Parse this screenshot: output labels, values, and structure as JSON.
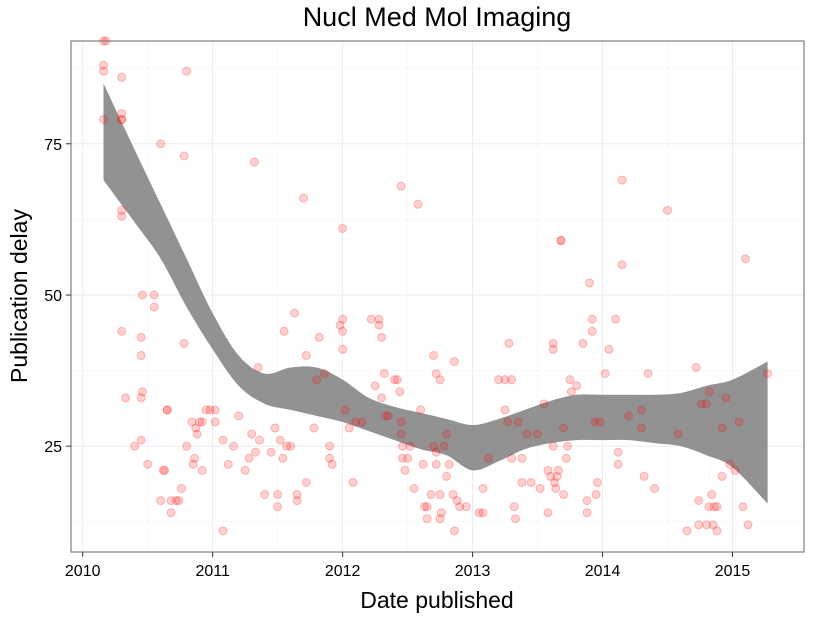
{
  "chart_data": {
    "type": "scatter",
    "title": "Nucl Med Mol Imaging",
    "xlabel": "Date published",
    "ylabel": "Publication delay",
    "x_ticks": [
      2010,
      2011,
      2012,
      2013,
      2014,
      2015
    ],
    "y_ticks": [
      25,
      50,
      75
    ],
    "xlim": [
      2009.91,
      2015.55
    ],
    "ylim": [
      7.5,
      92
    ],
    "grid": true,
    "colors": {
      "points": "#ff0000",
      "ribbon": "#7f7f7f",
      "border": "#7f7f7f",
      "grid": "#ebebeb"
    },
    "points": [
      [
        2010.16,
        92
      ],
      [
        2010.18,
        92
      ],
      [
        2010.16,
        88
      ],
      [
        2010.16,
        87
      ],
      [
        2010.16,
        79
      ],
      [
        2010.3,
        86
      ],
      [
        2010.3,
        80
      ],
      [
        2010.3,
        79
      ],
      [
        2010.3,
        79
      ],
      [
        2010.3,
        64
      ],
      [
        2010.3,
        63
      ],
      [
        2010.3,
        44
      ],
      [
        2010.33,
        33
      ],
      [
        2010.4,
        25
      ],
      [
        2010.45,
        43
      ],
      [
        2010.45,
        40
      ],
      [
        2010.46,
        34
      ],
      [
        2010.45,
        33
      ],
      [
        2010.45,
        26
      ],
      [
        2010.5,
        22
      ],
      [
        2010.46,
        50
      ],
      [
        2010.55,
        50
      ],
      [
        2010.55,
        48
      ],
      [
        2010.6,
        75
      ],
      [
        2010.62,
        21
      ],
      [
        2010.63,
        21
      ],
      [
        2010.6,
        16
      ],
      [
        2010.65,
        31
      ],
      [
        2010.65,
        31
      ],
      [
        2010.68,
        16
      ],
      [
        2010.68,
        14
      ],
      [
        2010.72,
        16
      ],
      [
        2010.74,
        16
      ],
      [
        2010.76,
        18
      ],
      [
        2010.78,
        73
      ],
      [
        2010.8,
        87
      ],
      [
        2010.78,
        42
      ],
      [
        2010.8,
        25
      ],
      [
        2010.84,
        29
      ],
      [
        2010.85,
        22
      ],
      [
        2010.86,
        23
      ],
      [
        2010.87,
        28
      ],
      [
        2010.88,
        27
      ],
      [
        2010.9,
        29
      ],
      [
        2010.92,
        29
      ],
      [
        2010.92,
        21
      ],
      [
        2010.95,
        31
      ],
      [
        2010.98,
        31
      ],
      [
        2011.02,
        31
      ],
      [
        2011.02,
        29
      ],
      [
        2011.08,
        26
      ],
      [
        2011.08,
        11
      ],
      [
        2011.12,
        22
      ],
      [
        2011.16,
        25
      ],
      [
        2011.2,
        30
      ],
      [
        2011.25,
        21
      ],
      [
        2011.28,
        23
      ],
      [
        2011.3,
        27
      ],
      [
        2011.32,
        72
      ],
      [
        2011.33,
        24
      ],
      [
        2011.35,
        38
      ],
      [
        2011.36,
        26
      ],
      [
        2011.4,
        17
      ],
      [
        2011.45,
        24
      ],
      [
        2011.48,
        28
      ],
      [
        2011.5,
        15
      ],
      [
        2011.5,
        17
      ],
      [
        2011.52,
        26
      ],
      [
        2011.54,
        23
      ],
      [
        2011.55,
        44
      ],
      [
        2011.57,
        25
      ],
      [
        2011.6,
        25
      ],
      [
        2011.63,
        47
      ],
      [
        2011.65,
        16
      ],
      [
        2011.65,
        17
      ],
      [
        2011.7,
        66
      ],
      [
        2011.72,
        40
      ],
      [
        2011.72,
        19
      ],
      [
        2011.78,
        28
      ],
      [
        2011.8,
        36
      ],
      [
        2011.82,
        43
      ],
      [
        2011.86,
        37
      ],
      [
        2011.9,
        25
      ],
      [
        2011.9,
        23
      ],
      [
        2011.92,
        22
      ],
      [
        2011.98,
        45
      ],
      [
        2012.0,
        61
      ],
      [
        2012.0,
        46
      ],
      [
        2012.0,
        44
      ],
      [
        2012.0,
        41
      ],
      [
        2012.02,
        31
      ],
      [
        2012.05,
        28
      ],
      [
        2012.08,
        19
      ],
      [
        2012.1,
        29
      ],
      [
        2012.15,
        29
      ],
      [
        2012.22,
        46
      ],
      [
        2012.25,
        35
      ],
      [
        2012.28,
        46
      ],
      [
        2012.28,
        45
      ],
      [
        2012.3,
        43
      ],
      [
        2012.3,
        33
      ],
      [
        2012.32,
        37
      ],
      [
        2012.33,
        30
      ],
      [
        2012.35,
        30
      ],
      [
        2012.4,
        36
      ],
      [
        2012.42,
        36
      ],
      [
        2012.44,
        34
      ],
      [
        2012.45,
        68
      ],
      [
        2012.45,
        29
      ],
      [
        2012.45,
        27
      ],
      [
        2012.46,
        25
      ],
      [
        2012.46,
        23
      ],
      [
        2012.48,
        21
      ],
      [
        2012.5,
        23
      ],
      [
        2012.52,
        25
      ],
      [
        2012.55,
        18
      ],
      [
        2012.58,
        65
      ],
      [
        2012.6,
        31
      ],
      [
        2012.62,
        22
      ],
      [
        2012.63,
        15
      ],
      [
        2012.65,
        15
      ],
      [
        2012.65,
        13
      ],
      [
        2012.68,
        17
      ],
      [
        2012.7,
        40
      ],
      [
        2012.7,
        25
      ],
      [
        2012.72,
        37
      ],
      [
        2012.72,
        24
      ],
      [
        2012.72,
        22
      ],
      [
        2012.75,
        36
      ],
      [
        2012.75,
        17
      ],
      [
        2012.75,
        13
      ],
      [
        2012.76,
        14
      ],
      [
        2012.78,
        25
      ],
      [
        2012.8,
        27
      ],
      [
        2012.8,
        20
      ],
      [
        2012.82,
        22
      ],
      [
        2012.85,
        17
      ],
      [
        2012.86,
        11
      ],
      [
        2012.86,
        39
      ],
      [
        2012.88,
        16
      ],
      [
        2012.9,
        15
      ],
      [
        2012.95,
        15
      ],
      [
        2013.05,
        14
      ],
      [
        2013.08,
        14
      ],
      [
        2013.08,
        18
      ],
      [
        2013.12,
        23
      ],
      [
        2013.2,
        36
      ],
      [
        2013.25,
        36
      ],
      [
        2013.25,
        31
      ],
      [
        2013.27,
        29
      ],
      [
        2013.28,
        42
      ],
      [
        2013.3,
        36
      ],
      [
        2013.3,
        23
      ],
      [
        2013.32,
        15
      ],
      [
        2013.33,
        13
      ],
      [
        2013.35,
        29
      ],
      [
        2013.38,
        19
      ],
      [
        2013.38,
        23
      ],
      [
        2013.42,
        27
      ],
      [
        2013.45,
        19
      ],
      [
        2013.5,
        27
      ],
      [
        2013.52,
        18
      ],
      [
        2013.55,
        32
      ],
      [
        2013.58,
        14
      ],
      [
        2013.58,
        21
      ],
      [
        2013.6,
        20
      ],
      [
        2013.62,
        41
      ],
      [
        2013.62,
        42
      ],
      [
        2013.62,
        25
      ],
      [
        2013.63,
        19
      ],
      [
        2013.64,
        18
      ],
      [
        2013.65,
        20
      ],
      [
        2013.66,
        21
      ],
      [
        2013.68,
        59
      ],
      [
        2013.68,
        59
      ],
      [
        2013.7,
        17
      ],
      [
        2013.7,
        28
      ],
      [
        2013.72,
        23
      ],
      [
        2013.73,
        25
      ],
      [
        2013.75,
        36
      ],
      [
        2013.76,
        34
      ],
      [
        2013.8,
        35
      ],
      [
        2013.85,
        42
      ],
      [
        2013.88,
        16
      ],
      [
        2013.88,
        14
      ],
      [
        2013.9,
        52
      ],
      [
        2013.92,
        46
      ],
      [
        2013.92,
        44
      ],
      [
        2013.94,
        29
      ],
      [
        2013.95,
        17
      ],
      [
        2013.96,
        19
      ],
      [
        2013.98,
        29
      ],
      [
        2014.02,
        37
      ],
      [
        2014.05,
        41
      ],
      [
        2014.1,
        46
      ],
      [
        2014.12,
        24
      ],
      [
        2014.12,
        22
      ],
      [
        2014.15,
        69
      ],
      [
        2014.15,
        55
      ],
      [
        2014.2,
        30
      ],
      [
        2014.3,
        31
      ],
      [
        2014.3,
        28
      ],
      [
        2014.32,
        20
      ],
      [
        2014.35,
        37
      ],
      [
        2014.4,
        18
      ],
      [
        2014.5,
        64
      ],
      [
        2014.58,
        27
      ],
      [
        2014.65,
        11
      ],
      [
        2014.72,
        38
      ],
      [
        2014.74,
        16
      ],
      [
        2014.74,
        12
      ],
      [
        2014.76,
        32
      ],
      [
        2014.8,
        32
      ],
      [
        2014.8,
        12
      ],
      [
        2014.82,
        34
      ],
      [
        2014.82,
        15
      ],
      [
        2014.84,
        17
      ],
      [
        2014.85,
        12
      ],
      [
        2014.86,
        15
      ],
      [
        2014.88,
        11
      ],
      [
        2014.88,
        15
      ],
      [
        2014.92,
        28
      ],
      [
        2014.92,
        20
      ],
      [
        2014.95,
        33
      ],
      [
        2014.98,
        22
      ],
      [
        2015.02,
        21
      ],
      [
        2015.05,
        29
      ],
      [
        2015.08,
        15
      ],
      [
        2015.1,
        56
      ],
      [
        2015.12,
        12
      ],
      [
        2015.27,
        37
      ]
    ],
    "smooth": {
      "x": [
        2010.16,
        2010.4,
        2010.6,
        2010.8,
        2011.0,
        2011.2,
        2011.4,
        2011.6,
        2011.8,
        2012.0,
        2012.2,
        2012.4,
        2012.6,
        2012.8,
        2013.0,
        2013.2,
        2013.4,
        2013.6,
        2013.8,
        2014.0,
        2014.2,
        2014.4,
        2014.6,
        2014.8,
        2015.0,
        2015.27
      ],
      "upper": [
        85,
        74,
        65,
        56,
        47,
        40,
        37,
        38,
        38,
        36,
        33,
        31.5,
        30.5,
        29.5,
        28.5,
        29.5,
        31,
        32.5,
        33.5,
        33.5,
        33.5,
        33.5,
        33.8,
        35,
        36,
        39
      ],
      "lower": [
        69,
        62,
        56,
        48,
        41,
        35,
        32,
        31,
        30,
        29,
        27.5,
        26,
        24.5,
        23.5,
        21,
        22.5,
        24.5,
        25.5,
        26,
        26,
        26,
        25.5,
        25,
        23.5,
        21.5,
        15.5
      ]
    }
  }
}
